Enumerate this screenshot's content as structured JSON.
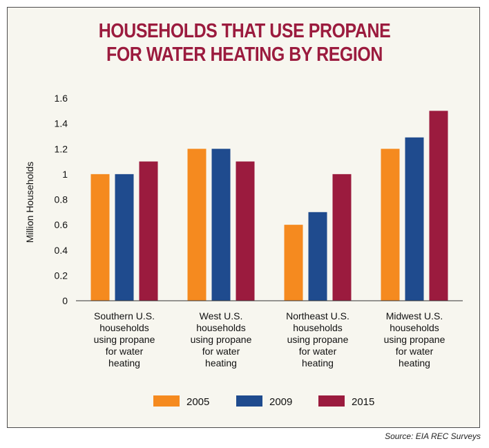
{
  "title_lines": [
    "HOUSEHOLDS THAT USE PROPANE",
    "FOR WATER HEATING BY REGION"
  ],
  "source": "Source: EIA REC Surveys",
  "colors": {
    "series_2005": "#f58a1f",
    "series_2009": "#1f4b8e",
    "series_2015": "#9b1b3e",
    "title": "#9b1b3e",
    "panel": "#f7f6ef"
  },
  "chart_data": {
    "type": "bar",
    "title": "HOUSEHOLDS THAT USE PROPANE FOR WATER HEATING BY REGION",
    "xlabel": "",
    "ylabel": "Million Households",
    "ylim": [
      0,
      1.6
    ],
    "yticks": [
      "0",
      "0.2",
      "0.4",
      "0.6",
      "0.8",
      "1",
      "1.2",
      "1.4",
      "1.6"
    ],
    "grid": false,
    "legend": "bottom",
    "categories": [
      [
        "Southern U.S.",
        "households",
        "using propane",
        "for water",
        "heating"
      ],
      [
        "West U.S.",
        "households",
        "using propane",
        "for water",
        "heating"
      ],
      [
        "Northeast U.S.",
        "households",
        "using propane",
        "for water",
        "heating"
      ],
      [
        "Midwest U.S.",
        "households",
        "using propane",
        "for water",
        "heating"
      ]
    ],
    "series": [
      {
        "name": "2005",
        "values": [
          1.0,
          1.2,
          0.6,
          1.2
        ]
      },
      {
        "name": "2009",
        "values": [
          1.0,
          1.2,
          0.7,
          1.29
        ]
      },
      {
        "name": "2015",
        "values": [
          1.1,
          1.1,
          1.0,
          1.5
        ]
      }
    ]
  }
}
